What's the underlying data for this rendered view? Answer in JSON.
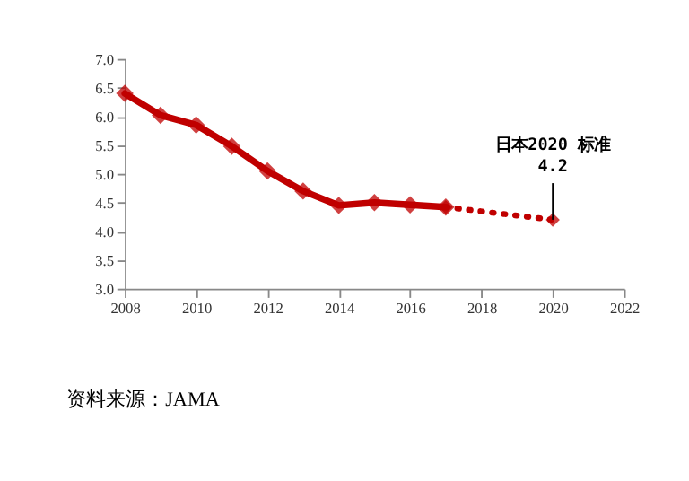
{
  "chart_data": {
    "type": "line",
    "series": [
      {
        "color": "#c00000",
        "line_style": "solid",
        "x": [
          2008,
          2009,
          2010,
          2011,
          2012,
          2013,
          2014,
          2015,
          2016,
          2017
        ],
        "values": [
          6.4,
          6.02,
          5.85,
          5.48,
          5.05,
          4.7,
          4.45,
          4.5,
          4.46,
          4.42
        ]
      },
      {
        "color": "#c00000",
        "line_style": "dotted",
        "x": [
          2017,
          2020
        ],
        "values": [
          4.42,
          4.2
        ]
      }
    ],
    "marker": "diamond",
    "xlim": [
      2008,
      2022
    ],
    "xticks": [
      2008,
      2010,
      2012,
      2014,
      2016,
      2018,
      2020,
      2022
    ],
    "ylim": [
      3,
      7
    ],
    "yticks": [
      {
        "value": 3,
        "label": "3.0"
      },
      3.5,
      {
        "value": 4,
        "label": "4.0"
      },
      4.5,
      {
        "value": 5,
        "label": "5.0"
      },
      5.5,
      {
        "value": 6,
        "label": "6.0"
      },
      6.5,
      {
        "value": 7,
        "label": "7.0"
      }
    ],
    "grid": false,
    "annotations": [
      {
        "text": "日本2020 标准\n4.2",
        "x": 2020,
        "y": 4.2
      },
      "资料来源：JAMA"
    ]
  }
}
